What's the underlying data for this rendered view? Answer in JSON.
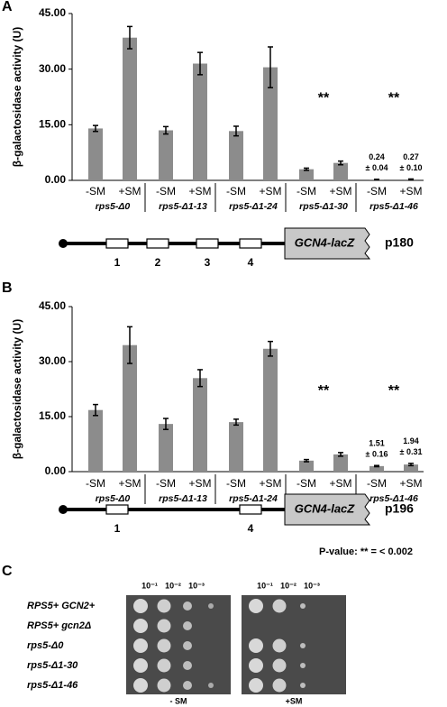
{
  "chart_data": [
    {
      "type": "bar",
      "panel_label": "A",
      "ylabel": "β-galactosidase activity (U)",
      "categories": [
        "-SM",
        "+SM",
        "-SM",
        "+SM",
        "-SM",
        "+SM",
        "-SM",
        "+SM",
        "-SM",
        "+SM"
      ],
      "groups": [
        "rps5-Δ0",
        "rps5-Δ1-13",
        "rps5-Δ1-24",
        "rps5-Δ1-30",
        "rps5-Δ1-46"
      ],
      "group_marks": [
        null,
        null,
        null,
        "**",
        "**"
      ],
      "values": [
        14.0,
        38.5,
        13.5,
        31.5,
        13.3,
        30.5,
        3.0,
        4.7,
        0.24,
        0.27
      ],
      "errors": [
        0.8,
        3.0,
        1.0,
        3.0,
        1.3,
        5.5,
        0.3,
        0.5,
        0.04,
        0.1
      ],
      "value_labels": [
        null,
        null,
        null,
        null,
        null,
        null,
        null,
        null,
        "0.24",
        "0.27"
      ],
      "error_labels": [
        null,
        null,
        null,
        null,
        null,
        null,
        null,
        null,
        "± 0.04",
        "± 0.10"
      ],
      "color": "#8c8c8c",
      "ylim": [
        0,
        45
      ],
      "yticks": [
        {
          "value": 0,
          "label": "0.00"
        },
        {
          "value": 15,
          "label": "15.00"
        },
        {
          "value": 30,
          "label": "30.00"
        },
        {
          "value": 45,
          "label": "45.00"
        }
      ]
    },
    {
      "type": "bar",
      "panel_label": "B",
      "ylabel": "β-galactosidase activity (U)",
      "categories": [
        "-SM",
        "+SM",
        "-SM",
        "+SM",
        "-SM",
        "+SM",
        "-SM",
        "+SM",
        "-SM",
        "+SM"
      ],
      "groups": [
        "rps5-Δ0",
        "rps5-Δ1-13",
        "rps5-Δ1-24",
        "rps5-Δ1-30",
        "rps5-Δ1-46"
      ],
      "group_marks": [
        null,
        null,
        null,
        "**",
        "**"
      ],
      "values": [
        16.8,
        34.5,
        13.0,
        25.5,
        13.5,
        33.5,
        3.0,
        4.7,
        1.51,
        1.94
      ],
      "errors": [
        1.5,
        5.0,
        1.5,
        2.3,
        0.8,
        2.0,
        0.3,
        0.5,
        0.16,
        0.31
      ],
      "value_labels": [
        null,
        null,
        null,
        null,
        null,
        null,
        null,
        null,
        "1.51",
        "1.94"
      ],
      "error_labels": [
        null,
        null,
        null,
        null,
        null,
        null,
        null,
        null,
        "± 0.16",
        "± 0.31"
      ],
      "color": "#8c8c8c",
      "ylim": [
        0,
        45
      ],
      "yticks": [
        {
          "value": 0,
          "label": "0.00"
        },
        {
          "value": 15,
          "label": "15.00"
        },
        {
          "value": 30,
          "label": "30.00"
        },
        {
          "value": 45,
          "label": "45.00"
        }
      ]
    }
  ],
  "diagrams": [
    {
      "segments": [
        "1",
        "2",
        "3",
        "4"
      ],
      "reporter": "GCN4-lacZ",
      "plasmid": "p180"
    },
    {
      "segments": [
        "1",
        "4"
      ],
      "reporter": "GCN4-lacZ",
      "plasmid": "p196"
    }
  ],
  "pvalue_note": "P-value: ** = < 0.002",
  "spot_assay": {
    "panel_label": "C",
    "dilutions": [
      "10⁻¹",
      "10⁻²",
      "10⁻³"
    ],
    "strains": [
      "RPS5+ GCN2+",
      "RPS5+ gcn2Δ",
      "rps5-Δ0",
      "rps5-Δ1-30",
      "rps5-Δ1-46"
    ],
    "conditions": [
      "- SM",
      "+SM"
    ]
  }
}
